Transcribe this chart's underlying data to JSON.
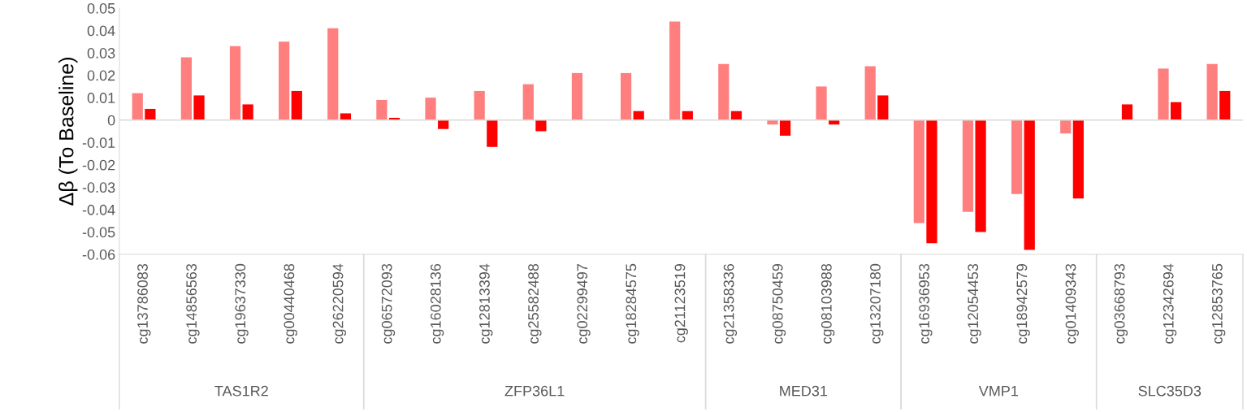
{
  "chart_data": {
    "type": "bar",
    "ylabel": "Δβ (To Baseline)",
    "categories": [
      "cg13786083",
      "cg14856563",
      "cg19637330",
      "cg00440468",
      "cg26220594",
      "cg06572093",
      "cg16028136",
      "cg12813394",
      "cg25582488",
      "cg02299497",
      "cg18284575",
      "cg21123519",
      "cg21358336",
      "cg08750459",
      "cg08103988",
      "cg13207180",
      "cg16936953",
      "cg12054453",
      "cg18942579",
      "cg01409343",
      "cg03668793",
      "cg12342694",
      "cg12853765"
    ],
    "series": [
      {
        "color": "#ff7f7f",
        "values": [
          0.012,
          0.028,
          0.033,
          0.035,
          0.041,
          0.009,
          0.01,
          0.013,
          0.016,
          0.021,
          0.021,
          0.044,
          0.025,
          -0.002,
          0.015,
          0.024,
          -0.046,
          -0.041,
          -0.033,
          -0.006,
          null,
          0.023,
          0.025
        ]
      },
      {
        "color": "#ff0000",
        "values": [
          0.005,
          0.011,
          0.007,
          0.013,
          0.003,
          0.001,
          -0.004,
          -0.012,
          -0.005,
          null,
          0.004,
          0.004,
          0.004,
          -0.007,
          -0.002,
          0.011,
          -0.055,
          -0.05,
          -0.058,
          -0.035,
          0.007,
          0.008,
          0.013
        ]
      }
    ],
    "ylim": [
      -0.06,
      0.05
    ],
    "yticks": [
      -0.06,
      -0.05,
      -0.04,
      -0.03,
      -0.02,
      -0.01,
      0,
      0.01,
      0.02,
      0.03,
      0.04,
      0.05
    ],
    "annotations": [
      "TAS1R2",
      "ZFP36L1",
      "MED31",
      "VMP1",
      "SLC35D3"
    ]
  }
}
